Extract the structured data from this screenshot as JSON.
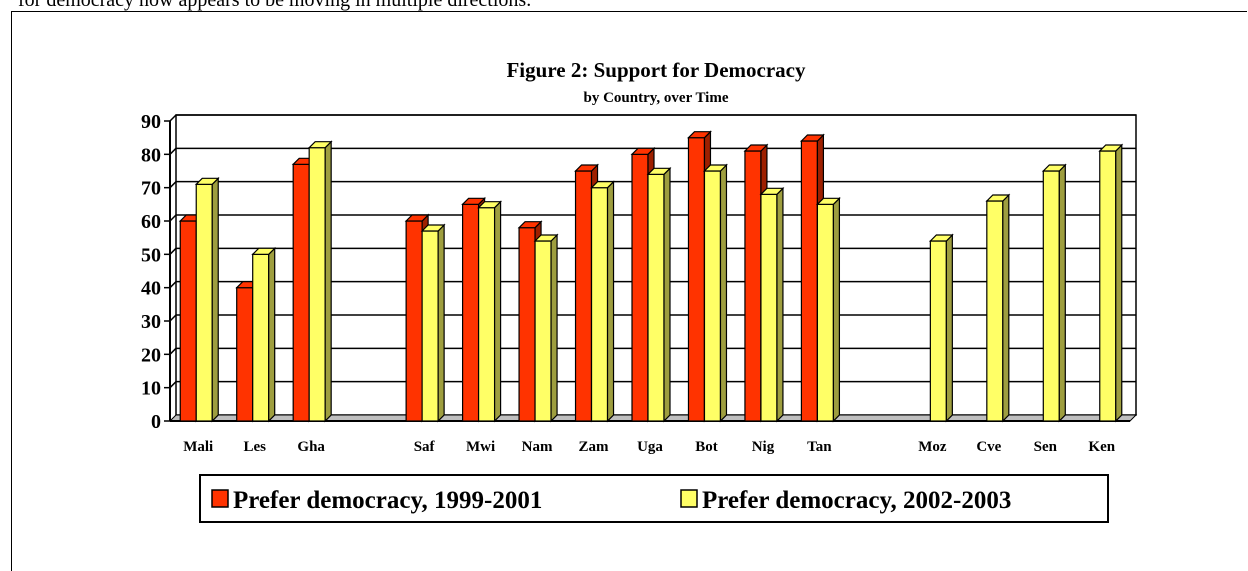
{
  "page": {
    "cut_text": "for democracy now appears to be moving in multiple directions."
  },
  "chart_data": {
    "type": "bar",
    "title": "Figure 2: Support for Democracy",
    "subtitle": "by Country, over Time",
    "xlabel": "",
    "ylabel": "",
    "ylim": [
      0,
      90
    ],
    "yticks": [
      0,
      10,
      20,
      30,
      40,
      50,
      60,
      70,
      80,
      90
    ],
    "grid": true,
    "legend_position": "bottom",
    "categories": [
      "Mali",
      "Les",
      "Gha",
      "",
      "Saf",
      "Mwi",
      "Nam",
      "Zam",
      "Uga",
      "Bot",
      "Nig",
      "Tan",
      "",
      "Moz",
      "Cve",
      "Sen",
      "Ken"
    ],
    "series": [
      {
        "name": "Prefer democracy, 1999-2001",
        "color": "#FF3300",
        "values": [
          60,
          40,
          77,
          null,
          60,
          65,
          58,
          75,
          80,
          85,
          81,
          84,
          null,
          null,
          null,
          null,
          null
        ]
      },
      {
        "name": "Prefer democracy, 2002-2003",
        "color": "#FFFF66",
        "values": [
          71,
          50,
          82,
          null,
          57,
          64,
          54,
          70,
          74,
          75,
          68,
          65,
          null,
          54,
          66,
          75,
          81
        ]
      }
    ]
  }
}
